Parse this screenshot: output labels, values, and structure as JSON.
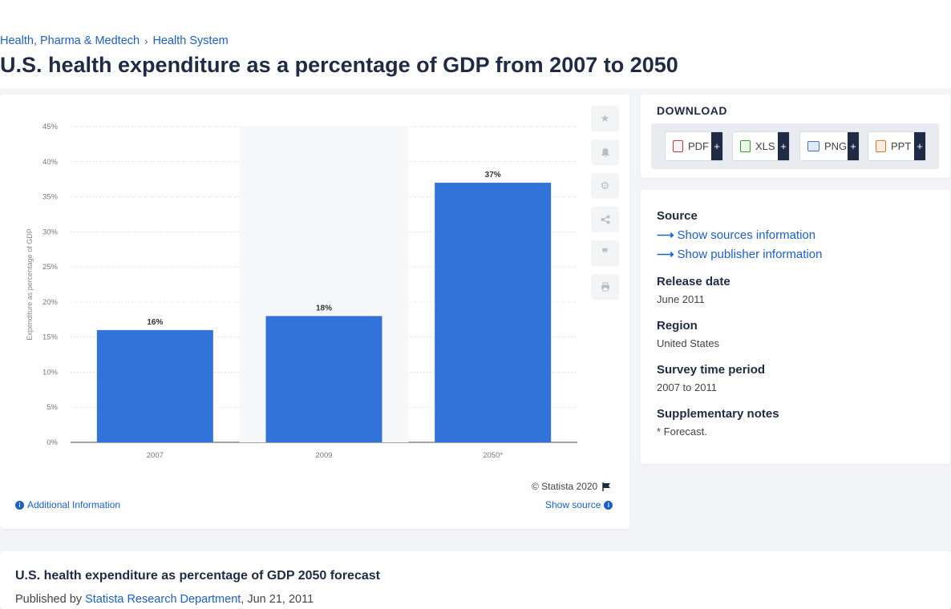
{
  "breadcrumb": {
    "item1": "Health, Pharma & Medtech",
    "sep": "›",
    "item2": "Health System"
  },
  "page_title": "U.S. health expenditure as a percentage of GDP from 2007 to 2050",
  "chart": {
    "copyright": "© Statista 2020",
    "additional_info": "Additional Information",
    "show_source": "Show source",
    "tools": [
      "star-icon",
      "bell-icon",
      "gear-icon",
      "share-icon",
      "quote-icon",
      "print-icon"
    ]
  },
  "chart_data": {
    "type": "bar",
    "categories": [
      "2007",
      "2009",
      "2050*"
    ],
    "values": [
      16,
      18,
      37
    ],
    "value_labels": [
      "16%",
      "18%",
      "37%"
    ],
    "ylabel": "Expenditure as percentage of GDP",
    "yticks": [
      "0%",
      "5%",
      "10%",
      "15%",
      "20%",
      "25%",
      "30%",
      "35%",
      "40%",
      "45%"
    ],
    "ylim": [
      0,
      45
    ],
    "bar_color": "#3273da",
    "grid": true
  },
  "download": {
    "heading": "DOWNLOAD",
    "buttons": [
      {
        "label": "PDF",
        "plus": "+",
        "icon": "pdf-icon"
      },
      {
        "label": "XLS",
        "plus": "+",
        "icon": "xls-icon"
      },
      {
        "label": "PNG",
        "plus": "+",
        "icon": "png-icon"
      },
      {
        "label": "PPT",
        "plus": "+",
        "icon": "ppt-icon"
      }
    ]
  },
  "info": {
    "source_label": "Source",
    "sources_link": "Show sources information",
    "publisher_link": "Show publisher information",
    "release_label": "Release date",
    "release_value": "June 2011",
    "region_label": "Region",
    "region_value": "United States",
    "period_label": "Survey time period",
    "period_value": "2007 to 2011",
    "notes_label": "Supplementary notes",
    "notes_value": "* Forecast."
  },
  "bottom": {
    "title": "U.S. health expenditure as percentage of GDP 2050 forecast",
    "published_by": "Published by ",
    "publisher": "Statista Research Department",
    "date": ", Jun 21, 2011"
  }
}
